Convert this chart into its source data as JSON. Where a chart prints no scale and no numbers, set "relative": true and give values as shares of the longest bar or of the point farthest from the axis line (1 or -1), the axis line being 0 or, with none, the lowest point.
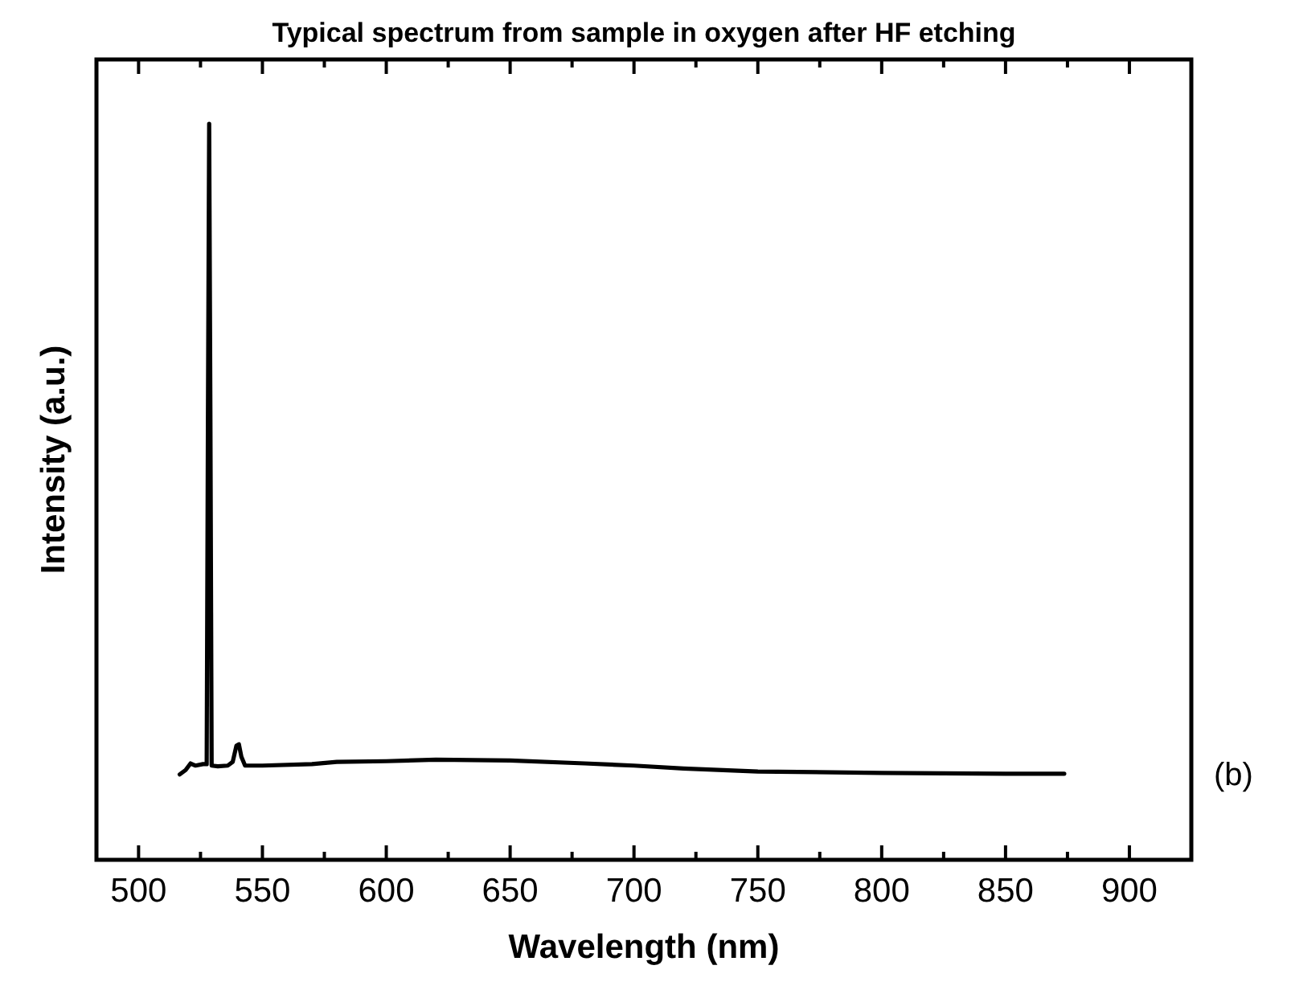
{
  "chart_data": {
    "type": "line",
    "title": "Typical spectrum from sample in oxygen after HF etching",
    "xlabel": "Wavelength (nm)",
    "ylabel": "Intensity (a.u.)",
    "relative": true,
    "annotations": [
      "(b)"
    ],
    "xlim": [
      483,
      925
    ],
    "xticks": [
      500,
      {
        "value": 525,
        "label": null
      },
      550,
      {
        "value": 575,
        "label": null
      },
      600,
      {
        "value": 625,
        "label": null
      },
      650,
      {
        "value": 675,
        "label": null
      },
      700,
      {
        "value": 725,
        "label": null
      },
      750,
      {
        "value": 775,
        "label": null
      },
      800,
      {
        "value": 825,
        "label": null
      },
      850,
      {
        "value": 875,
        "label": null
      },
      900
    ],
    "grid": false,
    "line_style": "solid",
    "series": [
      {
        "color": "#000000",
        "x": [
          516.6,
          519,
          521,
          523,
          526,
          527.5,
          528,
          528.5,
          529,
          529.5,
          532,
          536,
          538,
          539.5,
          540.5,
          541.5,
          543,
          550,
          570,
          580,
          600,
          620,
          650,
          680,
          700,
          720,
          750,
          800,
          850,
          873.7
        ],
        "values": [
          0.116,
          0.122,
          0.131,
          0.128,
          0.13,
          0.13,
          0.6,
          1.0,
          0.6,
          0.128,
          0.127,
          0.128,
          0.133,
          0.155,
          0.157,
          0.14,
          0.128,
          0.128,
          0.13,
          0.133,
          0.134,
          0.136,
          0.135,
          0.131,
          0.128,
          0.124,
          0.12,
          0.118,
          0.117,
          0.117
        ]
      }
    ]
  }
}
